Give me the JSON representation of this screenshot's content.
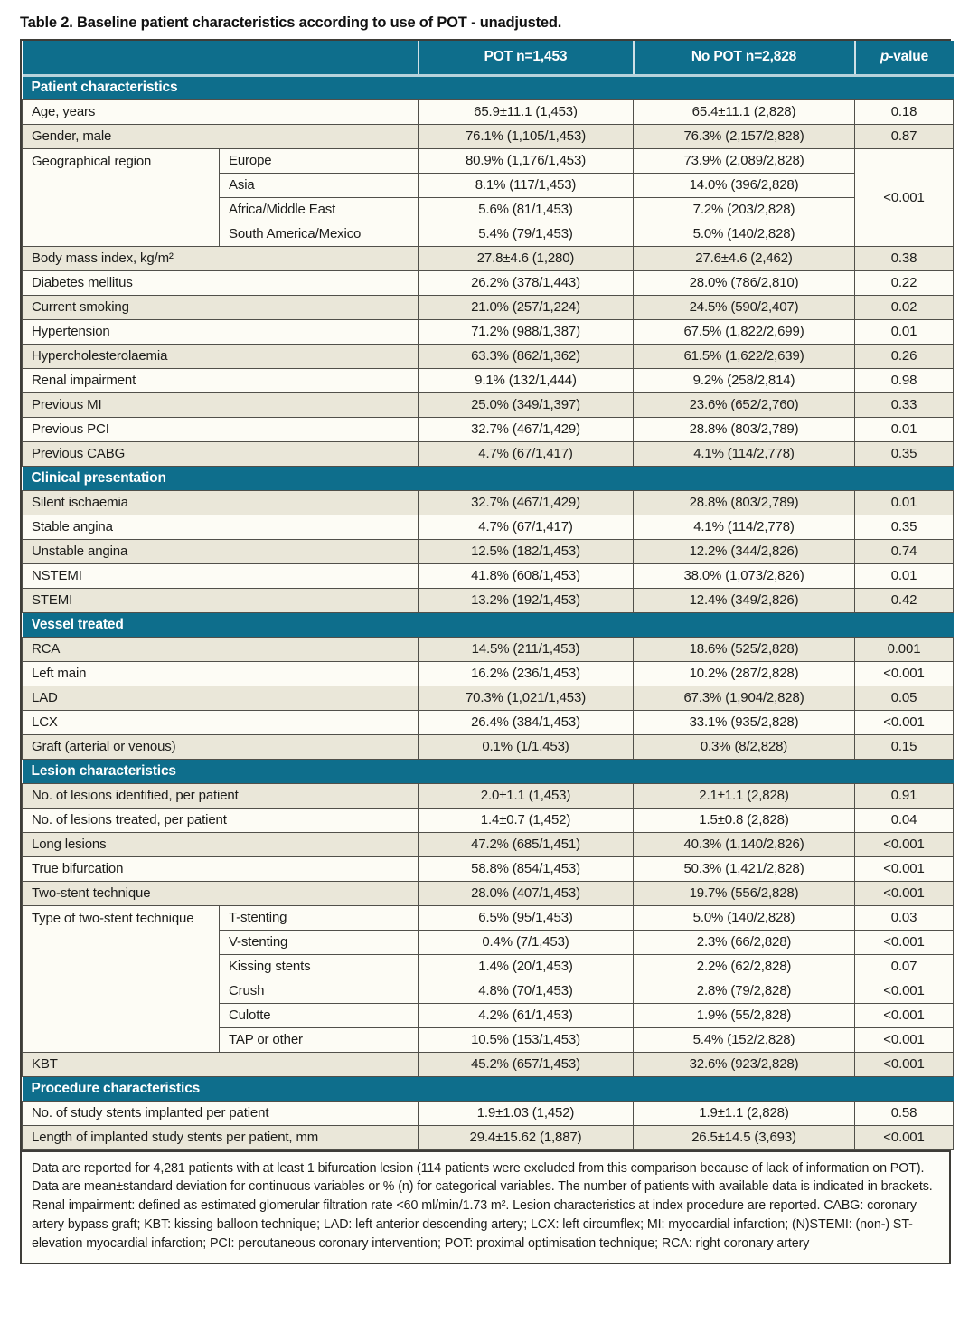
{
  "title": "Table 2. Baseline patient characteristics according to use of POT - unadjusted.",
  "colors": {
    "header_teal": "#0e6e8c",
    "row_light": "#fdfcf5",
    "row_dark": "#eae7d9",
    "border_dark": "#51504a",
    "header_separator": "#cfe0e6"
  },
  "table": {
    "column_headers": {
      "label": "",
      "pot": "POT n=1,453",
      "no_pot": "No POT n=2,828",
      "p_italic": "p",
      "p_rest": "-value"
    },
    "sections": [
      {
        "header": "Patient characteristics",
        "rows": [
          {
            "label": "Age, years",
            "pot": "65.9±11.1 (1,453)",
            "no_pot": "65.4±11.1 (2,828)",
            "p": "0.18",
            "shade": "light"
          },
          {
            "label": "Gender, male",
            "pot": "76.1% (1,105/1,453)",
            "no_pot": "76.3% (2,157/2,828)",
            "p": "0.87",
            "shade": "dark"
          },
          {
            "label": "Geographical region",
            "shade": "light",
            "p": "<0.001",
            "p_merged": true,
            "subrows": [
              {
                "label": "Europe",
                "pot": "80.9% (1,176/1,453)",
                "no_pot": "73.9% (2,089/2,828)"
              },
              {
                "label": "Asia",
                "pot": "8.1% (117/1,453)",
                "no_pot": "14.0% (396/2,828)"
              },
              {
                "label": "Africa/Middle East",
                "pot": "5.6% (81/1,453)",
                "no_pot": "7.2% (203/2,828)"
              },
              {
                "label": "South America/Mexico",
                "pot": "5.4% (79/1,453)",
                "no_pot": "5.0% (140/2,828)"
              }
            ]
          },
          {
            "label": "Body mass index, kg/m²",
            "pot": "27.8±4.6 (1,280)",
            "no_pot": "27.6±4.6 (2,462)",
            "p": "0.38",
            "shade": "dark"
          },
          {
            "label": "Diabetes mellitus",
            "pot": "26.2% (378/1,443)",
            "no_pot": "28.0% (786/2,810)",
            "p": "0.22",
            "shade": "light"
          },
          {
            "label": "Current smoking",
            "pot": "21.0% (257/1,224)",
            "no_pot": "24.5% (590/2,407)",
            "p": "0.02",
            "shade": "dark"
          },
          {
            "label": "Hypertension",
            "pot": "71.2% (988/1,387)",
            "no_pot": "67.5% (1,822/2,699)",
            "p": "0.01",
            "shade": "light"
          },
          {
            "label": "Hypercholesterolaemia",
            "pot": "63.3% (862/1,362)",
            "no_pot": "61.5% (1,622/2,639)",
            "p": "0.26",
            "shade": "dark"
          },
          {
            "label": "Renal impairment",
            "pot": "9.1% (132/1,444)",
            "no_pot": "9.2% (258/2,814)",
            "p": "0.98",
            "shade": "light"
          },
          {
            "label": "Previous MI",
            "pot": "25.0% (349/1,397)",
            "no_pot": "23.6% (652/2,760)",
            "p": "0.33",
            "shade": "dark"
          },
          {
            "label": "Previous PCI",
            "pot": "32.7% (467/1,429)",
            "no_pot": "28.8% (803/2,789)",
            "p": "0.01",
            "shade": "light"
          },
          {
            "label": "Previous CABG",
            "pot": "4.7% (67/1,417)",
            "no_pot": "4.1% (114/2,778)",
            "p": "0.35",
            "shade": "dark"
          }
        ]
      },
      {
        "header": "Clinical presentation",
        "rows": [
          {
            "label": "Silent ischaemia",
            "pot": "32.7% (467/1,429)",
            "no_pot": "28.8% (803/2,789)",
            "p": "0.01",
            "shade": "dark"
          },
          {
            "label": "Stable angina",
            "pot": "4.7% (67/1,417)",
            "no_pot": "4.1% (114/2,778)",
            "p": "0.35",
            "shade": "light"
          },
          {
            "label": "Unstable angina",
            "pot": "12.5% (182/1,453)",
            "no_pot": "12.2% (344/2,826)",
            "p": "0.74",
            "shade": "dark"
          },
          {
            "label": "NSTEMI",
            "pot": "41.8% (608/1,453)",
            "no_pot": "38.0% (1,073/2,826)",
            "p": "0.01",
            "shade": "light"
          },
          {
            "label": "STEMI",
            "pot": "13.2% (192/1,453)",
            "no_pot": "12.4% (349/2,826)",
            "p": "0.42",
            "shade": "dark"
          }
        ]
      },
      {
        "header": "Vessel treated",
        "rows": [
          {
            "label": "RCA",
            "pot": "14.5% (211/1,453)",
            "no_pot": "18.6% (525/2,828)",
            "p": "0.001",
            "shade": "dark"
          },
          {
            "label": "Left main",
            "pot": "16.2% (236/1,453)",
            "no_pot": "10.2% (287/2,828)",
            "p": "<0.001",
            "shade": "light"
          },
          {
            "label": "LAD",
            "pot": "70.3% (1,021/1,453)",
            "no_pot": "67.3% (1,904/2,828)",
            "p": "0.05",
            "shade": "dark"
          },
          {
            "label": "LCX",
            "pot": "26.4% (384/1,453)",
            "no_pot": "33.1% (935/2,828)",
            "p": "<0.001",
            "shade": "light"
          },
          {
            "label": "Graft (arterial or venous)",
            "pot": "0.1% (1/1,453)",
            "no_pot": "0.3% (8/2,828)",
            "p": "0.15",
            "shade": "dark"
          }
        ]
      },
      {
        "header": "Lesion characteristics",
        "rows": [
          {
            "label": "No. of lesions identified, per patient",
            "pot": "2.0±1.1 (1,453)",
            "no_pot": "2.1±1.1 (2,828)",
            "p": "0.91",
            "shade": "dark"
          },
          {
            "label": "No. of lesions treated, per patient",
            "pot": "1.4±0.7 (1,452)",
            "no_pot": "1.5±0.8 (2,828)",
            "p": "0.04",
            "shade": "light"
          },
          {
            "label": "Long lesions",
            "pot": "47.2% (685/1,451)",
            "no_pot": "40.3% (1,140/2,826)",
            "p": "<0.001",
            "shade": "dark"
          },
          {
            "label": "True bifurcation",
            "pot": "58.8% (854/1,453)",
            "no_pot": "50.3% (1,421/2,828)",
            "p": "<0.001",
            "shade": "light"
          },
          {
            "label": "Two-stent technique",
            "pot": "28.0% (407/1,453)",
            "no_pot": "19.7% (556/2,828)",
            "p": "<0.001",
            "shade": "dark"
          },
          {
            "label": "Type of two-stent technique",
            "shade": "light",
            "p_merged": false,
            "subrows": [
              {
                "label": "T-stenting",
                "pot": "6.5% (95/1,453)",
                "no_pot": "5.0% (140/2,828)",
                "p": "0.03"
              },
              {
                "label": "V-stenting",
                "pot": "0.4% (7/1,453)",
                "no_pot": "2.3% (66/2,828)",
                "p": "<0.001"
              },
              {
                "label": "Kissing stents",
                "pot": "1.4% (20/1,453)",
                "no_pot": "2.2% (62/2,828)",
                "p": "0.07"
              },
              {
                "label": "Crush",
                "pot": "4.8% (70/1,453)",
                "no_pot": "2.8% (79/2,828)",
                "p": "<0.001"
              },
              {
                "label": "Culotte",
                "pot": "4.2% (61/1,453)",
                "no_pot": "1.9% (55/2,828)",
                "p": "<0.001"
              },
              {
                "label": "TAP or other",
                "pot": "10.5% (153/1,453)",
                "no_pot": "5.4% (152/2,828)",
                "p": "<0.001"
              }
            ]
          },
          {
            "label": "KBT",
            "pot": "45.2% (657/1,453)",
            "no_pot": "32.6% (923/2,828)",
            "p": "<0.001",
            "shade": "dark"
          }
        ]
      },
      {
        "header": "Procedure characteristics",
        "rows": [
          {
            "label": "No. of study stents implanted per patient",
            "pot": "1.9±1.03 (1,452)",
            "no_pot": "1.9±1.1 (2,828)",
            "p": "0.58",
            "shade": "light"
          },
          {
            "label": "Length of implanted study stents per patient, mm",
            "pot": "29.4±15.62 (1,887)",
            "no_pot": "26.5±14.5 (3,693)",
            "p": "<0.001",
            "shade": "dark"
          }
        ]
      }
    ]
  },
  "footnote": "Data are reported for 4,281 patients with at least 1 bifurcation lesion (114 patients were excluded from this comparison because of lack of information on POT). Data are mean±standard deviation for continuous variables or % (n) for categorical variables. The number of patients with available data is indicated in brackets. Renal impairment: defined as estimated glomerular filtration rate <60 ml/min/1.73 m². Lesion characteristics at index procedure are reported. CABG: coronary artery bypass graft; KBT: kissing balloon technique; LAD: left anterior descending artery; LCX: left circumflex; MI: myocardial infarction; (N)STEMI: (non-) ST-elevation myocardial infarction; PCI: percutaneous coronary intervention; POT: proximal optimisation technique; RCA: right coronary artery"
}
